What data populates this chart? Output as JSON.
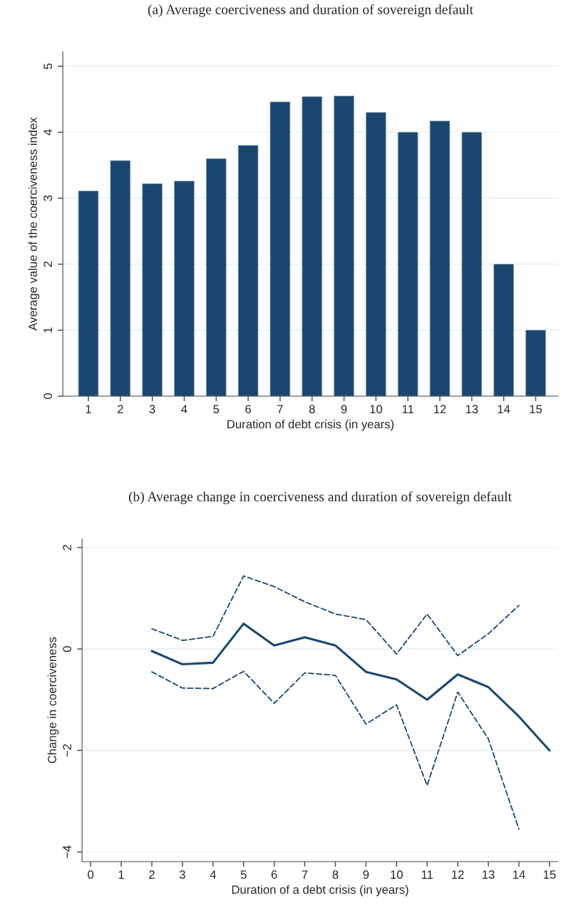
{
  "chart_data": [
    {
      "type": "bar",
      "title": "(a) Average coerciveness and duration of sovereign default",
      "xlabel": "Duration of debt crisis (in years)",
      "ylabel": "Average value of the coerciveness index",
      "categories": [
        "1",
        "2",
        "3",
        "4",
        "5",
        "6",
        "7",
        "8",
        "9",
        "10",
        "11",
        "12",
        "13",
        "14",
        "15"
      ],
      "values": [
        3.11,
        3.57,
        3.22,
        3.26,
        3.6,
        3.8,
        4.46,
        4.54,
        4.55,
        4.3,
        4.0,
        4.17,
        4.0,
        2.0,
        1.0
      ],
      "color": "#1a476f",
      "ylim": [
        0,
        5.22
      ],
      "yticks": [
        0,
        1,
        2,
        3,
        4,
        5
      ],
      "grid": "y",
      "legend": false
    },
    {
      "type": "line",
      "title": "(b) Average change in coerciveness and duration of sovereign default",
      "xlabel": "Duration of a debt crisis (in years)",
      "ylabel": "Change in coerciveness",
      "x": [
        2,
        3,
        4,
        5,
        6,
        7,
        8,
        9,
        10,
        11,
        12,
        13,
        14,
        15
      ],
      "series": [
        {
          "color": "#1a476f",
          "line_style": "solid",
          "values": [
            -0.04,
            -0.3,
            -0.27,
            0.5,
            0.07,
            0.23,
            0.07,
            -0.45,
            -0.6,
            -1.0,
            -0.5,
            -0.75,
            -1.33,
            -2.0
          ]
        },
        {
          "color": "#1a476f",
          "line_style": "dashed",
          "values": [
            -0.45,
            -0.77,
            -0.78,
            -0.44,
            -1.07,
            -0.47,
            -0.52,
            -1.48,
            -1.1,
            -2.69,
            -0.85,
            -1.77,
            -3.55,
            null
          ]
        },
        {
          "color": "#1a476f",
          "line_style": "dashed",
          "values": [
            0.4,
            0.17,
            0.25,
            1.44,
            1.23,
            0.93,
            0.69,
            0.58,
            -0.1,
            0.69,
            -0.13,
            0.3,
            0.86,
            null
          ]
        }
      ],
      "xlim": [
        -0.28,
        15.28
      ],
      "xticks": [
        0,
        1,
        2,
        3,
        4,
        5,
        6,
        7,
        8,
        9,
        10,
        11,
        12,
        13,
        14,
        15
      ],
      "ylim": [
        -4.19,
        2.17
      ],
      "yticks": [
        {
          "value": -4,
          "label": "−4"
        },
        {
          "value": -2,
          "label": "−2"
        },
        0,
        2
      ],
      "grid": "y",
      "legend": false
    }
  ]
}
